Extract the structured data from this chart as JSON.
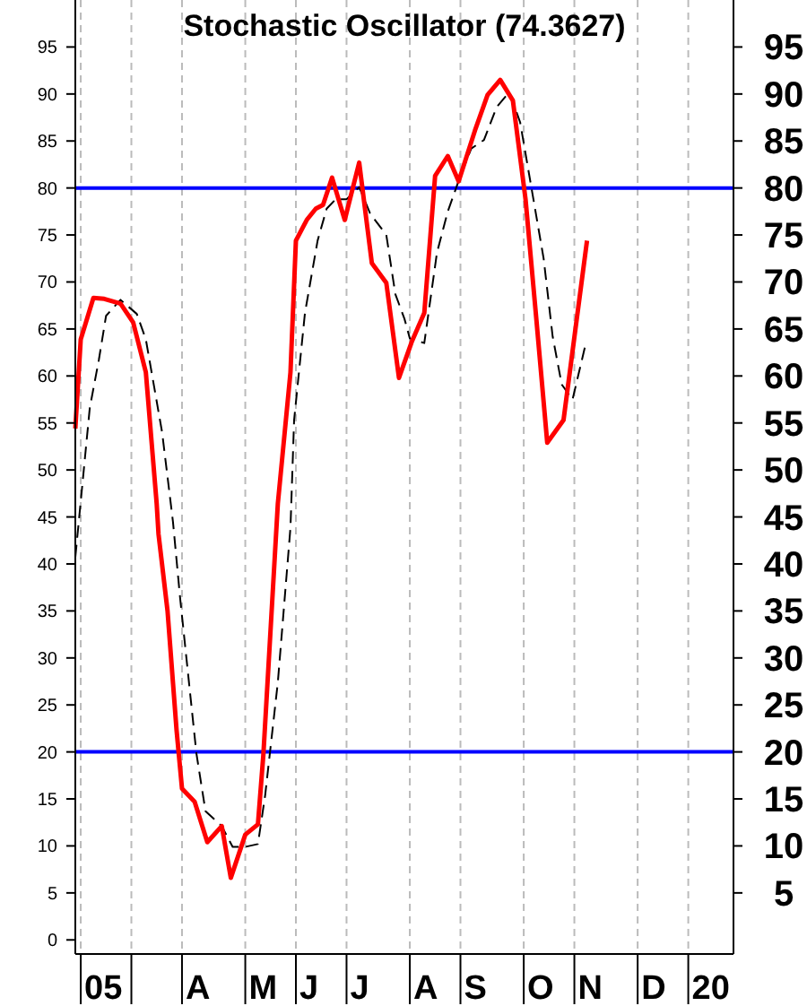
{
  "chart_data": {
    "type": "line",
    "title": "Stochastic Oscillator (74.3627)",
    "xlim": [
      "2005-02-01",
      "2006-01-31"
    ],
    "xticks": [
      {
        "value": "2005-02-04",
        "label": "05"
      },
      {
        "value": "2005-03-04",
        "label": null
      },
      {
        "value": "2005-04-01",
        "label": "A"
      },
      {
        "value": "2005-05-06",
        "label": "M"
      },
      {
        "value": "2005-06-03",
        "label": "J"
      },
      {
        "value": "2005-07-01",
        "label": "J"
      },
      {
        "value": "2005-08-05",
        "label": "A"
      },
      {
        "value": "2005-09-02",
        "label": "S"
      },
      {
        "value": "2005-10-07",
        "label": "O"
      },
      {
        "value": "2005-11-04",
        "label": "N"
      },
      {
        "value": "2005-12-09",
        "label": "D"
      },
      {
        "value": "2006-01-06",
        "label": "20"
      }
    ],
    "ylim": [
      -1.5,
      100
    ],
    "yticks": [
      0,
      5,
      10,
      15,
      20,
      25,
      30,
      35,
      40,
      45,
      50,
      55,
      60,
      65,
      70,
      75,
      80,
      85,
      90,
      95
    ],
    "y2lim": [
      -1.5,
      100
    ],
    "y2ticks": [
      5,
      10,
      15,
      20,
      25,
      30,
      35,
      40,
      45,
      50,
      55,
      60,
      65,
      70,
      75,
      80,
      85,
      90,
      95
    ],
    "grid": "x",
    "marker": "none",
    "ref_lines": [
      {
        "axis": "y",
        "value": 80,
        "color": "#0000ff"
      },
      {
        "axis": "y",
        "value": 20,
        "color": "#0000ff"
      }
    ],
    "series": [
      {
        "color": "#000000",
        "line_style": "dashed",
        "x": [
          "2005-02-01",
          "2005-02-09",
          "2005-02-14",
          "2005-02-18",
          "2005-02-26",
          "2005-03-07",
          "2005-03-12",
          "2005-03-21",
          "2005-03-27",
          "2005-03-31",
          "2005-04-09",
          "2005-04-14",
          "2005-04-23",
          "2005-04-29",
          "2005-05-06",
          "2005-05-13",
          "2005-05-17",
          "2005-05-24",
          "2005-05-31",
          "2005-06-02",
          "2005-06-08",
          "2005-06-15",
          "2005-06-20",
          "2005-06-25",
          "2005-07-01",
          "2005-07-08",
          "2005-07-14",
          "2005-07-23",
          "2005-07-28",
          "2005-08-02",
          "2005-08-05",
          "2005-08-13",
          "2005-08-20",
          "2005-08-26",
          "2005-09-02",
          "2005-09-08",
          "2005-09-15",
          "2005-09-22",
          "2005-09-29",
          "2005-10-05",
          "2005-10-18",
          "2005-10-23",
          "2005-10-28",
          "2005-11-03",
          "2005-11-10"
        ],
        "values": [
          40.7,
          56.6,
          61.7,
          66.4,
          68.1,
          66.6,
          63.9,
          54,
          44.5,
          36.3,
          19.8,
          13.7,
          12.1,
          9.9,
          9.9,
          10.2,
          15.4,
          27.4,
          43.9,
          55.3,
          66.7,
          74.4,
          77.8,
          78.8,
          78.8,
          80.1,
          77.3,
          75,
          68.7,
          66.1,
          64,
          63.5,
          73.1,
          77.5,
          81.3,
          84.2,
          85.1,
          88.6,
          90.2,
          87,
          72.5,
          64.2,
          59.1,
          57.5,
          63.2
        ]
      },
      {
        "color": "#ff0000",
        "line_style": "solid",
        "x": [
          "2005-02-01",
          "2005-02-04",
          "2005-02-11",
          "2005-02-17",
          "2005-02-26",
          "2005-03-05",
          "2005-03-12",
          "2005-03-18",
          "2005-03-19",
          "2005-03-24",
          "2005-03-29",
          "2005-04-01",
          "2005-04-08",
          "2005-04-15",
          "2005-04-23",
          "2005-04-28",
          "2005-05-06",
          "2005-05-13",
          "2005-05-16",
          "2005-05-24",
          "2005-05-31",
          "2005-06-03",
          "2005-06-09",
          "2005-06-14",
          "2005-06-18",
          "2005-06-23",
          "2005-06-30",
          "2005-07-08",
          "2005-07-15",
          "2005-07-23",
          "2005-07-30",
          "2005-08-06",
          "2005-08-13",
          "2005-08-19",
          "2005-08-26",
          "2005-09-01",
          "2005-09-10",
          "2005-09-17",
          "2005-09-24",
          "2005-10-01",
          "2005-10-08",
          "2005-10-14",
          "2005-10-20",
          "2005-10-29",
          "2005-11-11"
        ],
        "values": [
          54.4,
          63.9,
          68.3,
          68.2,
          67.7,
          65.7,
          60.4,
          46.4,
          43.2,
          35,
          22.3,
          16.1,
          14.7,
          10.4,
          12.1,
          6.6,
          11.2,
          12.3,
          19.7,
          46.4,
          60.4,
          74.4,
          76.6,
          77.8,
          78.2,
          81.1,
          76.6,
          82.7,
          72,
          69.9,
          59.8,
          63.6,
          66.7,
          81.3,
          83.4,
          80.7,
          86.1,
          89.9,
          91.5,
          89.3,
          78.8,
          66,
          52.9,
          55.3,
          74.4
        ]
      }
    ]
  }
}
